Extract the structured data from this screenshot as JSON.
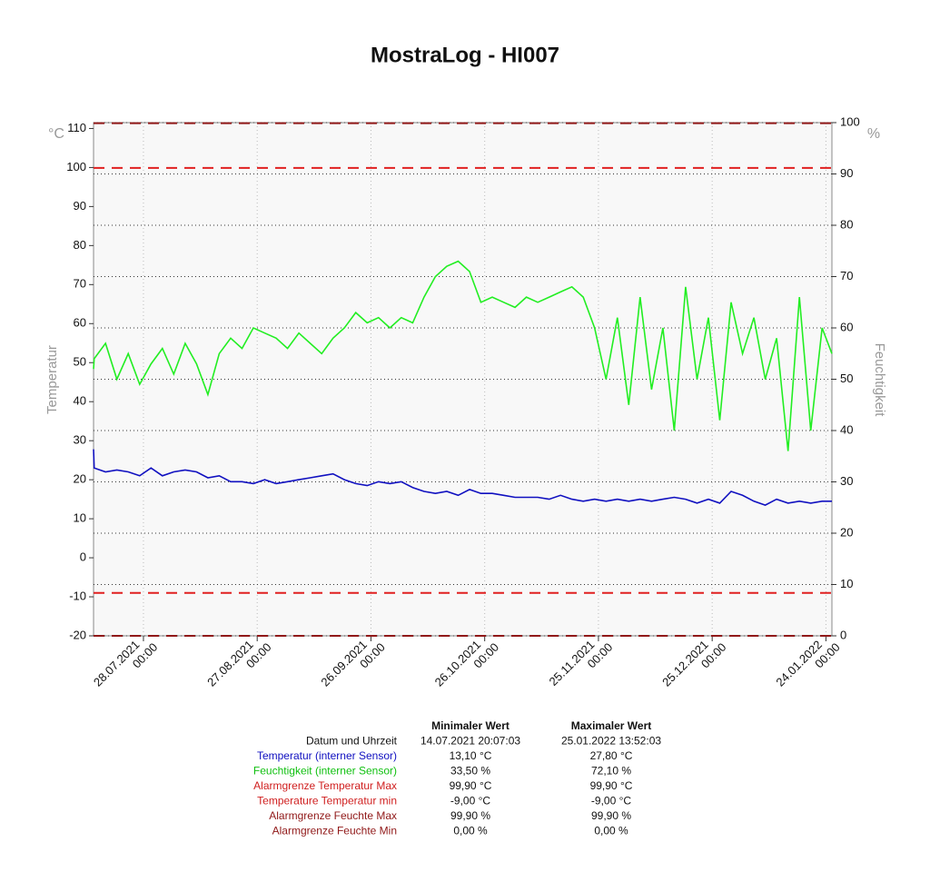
{
  "chart_data": {
    "type": "line",
    "title": "MostraLog - HI007",
    "y_unit": "°C",
    "y_label": "Temperatur",
    "y2_unit": "%",
    "y2_label": "Feuchtigkeit",
    "xlim": [
      "14.07.2021 20:07",
      "25.01.2022 13:52"
    ],
    "xticks": [
      "28.07.2021 00:00",
      "27.08.2021 00:00",
      "26.09.2021 00:00",
      "26.10.2021 00:00",
      "25.11.2021 00:00",
      "25.12.2021 00:00",
      "24.01.2022 00:00"
    ],
    "ylim": [
      -20,
      111.5
    ],
    "yticks": [
      -20,
      -10,
      0,
      10,
      20,
      30,
      40,
      50,
      60,
      70,
      80,
      90,
      100,
      110
    ],
    "y2lim": [
      0,
      100
    ],
    "y2ticks": [
      0,
      10,
      20,
      30,
      40,
      50,
      60,
      70,
      80,
      90,
      100
    ],
    "grid": true,
    "x": [
      "14.07.2021 20:07",
      "15.07.2021 00:00",
      "18.07.2021 00:00",
      "21.07.2021 00:00",
      "24.07.2021 00:00",
      "27.07.2021 00:00",
      "30.07.2021 00:00",
      "02.08.2021 00:00",
      "05.08.2021 00:00",
      "08.08.2021 00:00",
      "11.08.2021 00:00",
      "14.08.2021 00:00",
      "17.08.2021 00:00",
      "20.08.2021 00:00",
      "23.08.2021 00:00",
      "26.08.2021 00:00",
      "29.08.2021 00:00",
      "01.09.2021 00:00",
      "04.09.2021 00:00",
      "07.09.2021 00:00",
      "10.09.2021 00:00",
      "13.09.2021 00:00",
      "16.09.2021 00:00",
      "19.09.2021 00:00",
      "22.09.2021 00:00",
      "25.09.2021 00:00",
      "28.09.2021 00:00",
      "01.10.2021 00:00",
      "04.10.2021 00:00",
      "07.10.2021 00:00",
      "10.10.2021 00:00",
      "13.10.2021 00:00",
      "16.10.2021 00:00",
      "19.10.2021 00:00",
      "22.10.2021 00:00",
      "25.10.2021 00:00",
      "28.10.2021 00:00",
      "31.10.2021 00:00",
      "03.11.2021 00:00",
      "06.11.2021 00:00",
      "09.11.2021 00:00",
      "12.11.2021 00:00",
      "15.11.2021 00:00",
      "18.11.2021 00:00",
      "21.11.2021 00:00",
      "24.11.2021 00:00",
      "27.11.2021 00:00",
      "30.11.2021 00:00",
      "03.12.2021 00:00",
      "06.12.2021 00:00",
      "09.12.2021 00:00",
      "12.12.2021 00:00",
      "15.12.2021 00:00",
      "18.12.2021 00:00",
      "21.12.2021 00:00",
      "24.12.2021 00:00",
      "27.12.2021 00:00",
      "30.12.2021 00:00",
      "02.01.2022 00:00",
      "05.01.2022 00:00",
      "08.01.2022 00:00",
      "11.01.2022 00:00",
      "14.01.2022 00:00",
      "17.01.2022 00:00",
      "20.01.2022 00:00",
      "23.01.2022 00:00",
      "25.01.2022 13:52"
    ],
    "series": [
      {
        "name": "Temperatur (interner Sensor)",
        "color": "#1010c0",
        "axis": "y",
        "values": [
          27.8,
          23,
          22,
          22.5,
          22,
          21,
          23,
          21,
          22,
          22.5,
          22,
          20.5,
          21,
          19.5,
          19.5,
          19,
          20,
          19,
          19.5,
          20,
          20.5,
          21,
          21.5,
          20,
          19,
          18.5,
          19.5,
          19,
          19.5,
          18,
          17,
          16.5,
          17,
          16,
          17.5,
          16.5,
          16.5,
          16,
          15.5,
          15.5,
          15.5,
          15,
          16,
          15,
          14.5,
          15,
          14.5,
          15,
          14.5,
          15,
          14.5,
          15,
          15.5,
          15,
          14,
          15,
          14,
          17,
          16,
          14.5,
          13.5,
          15,
          14,
          14.5,
          14,
          14.5,
          14.5
        ]
      },
      {
        "name": "Feuchtigkeit (interner Sensor)",
        "color": "#22ee22",
        "axis": "y2",
        "values": [
          52,
          54,
          57,
          50,
          55,
          49,
          53,
          56,
          51,
          57,
          53,
          47,
          55,
          58,
          56,
          60,
          59,
          58,
          56,
          59,
          57,
          55,
          58,
          60,
          63,
          61,
          62,
          60,
          62,
          61,
          66,
          70,
          72,
          73,
          71,
          65,
          66,
          65,
          64,
          66,
          65,
          66,
          67,
          68,
          66,
          60,
          50,
          62,
          45,
          66,
          48,
          60,
          40,
          68,
          50,
          62,
          42,
          65,
          55,
          62,
          50,
          58,
          36,
          66,
          40,
          60,
          55
        ]
      }
    ],
    "reference_lines": [
      {
        "value": 99.9,
        "axis": "y",
        "color": "#e02020"
      },
      {
        "value": -9,
        "axis": "y",
        "color": "#e02020"
      },
      {
        "value": 99.9,
        "axis": "y2",
        "color": "#901818"
      },
      {
        "value": 0,
        "axis": "y2",
        "color": "#901818"
      }
    ]
  },
  "stats_table": {
    "columns": [
      "Minimaler Wert",
      "Maximaler Wert"
    ],
    "rows": [
      {
        "label": "Datum und Uhrzeit",
        "color": "#111111",
        "min": "14.07.2021 20:07:03",
        "max": "25.01.2022 13:52:03"
      },
      {
        "label": "Temperatur (interner Sensor)",
        "color": "#1010c0",
        "min": "13,10 °C",
        "max": "27,80 °C"
      },
      {
        "label": "Feuchtigkeit (interner Sensor)",
        "color": "#10c010",
        "min": "33,50 %",
        "max": "72,10 %"
      },
      {
        "label": "Alarmgrenze Temperatur Max",
        "color": "#d02020",
        "min": "99,90 °C",
        "max": "99,90 °C"
      },
      {
        "label": "Temperature Temperatur min",
        "color": "#d02020",
        "min": "-9,00 °C",
        "max": "-9,00 °C"
      },
      {
        "label": "Alarmgrenze Feuchte Max",
        "color": "#901818",
        "min": "99,90 %",
        "max": "99,90 %"
      },
      {
        "label": "Alarmgrenze Feuchte Min",
        "color": "#901818",
        "min": "0,00 %",
        "max": "0,00 %"
      }
    ]
  }
}
